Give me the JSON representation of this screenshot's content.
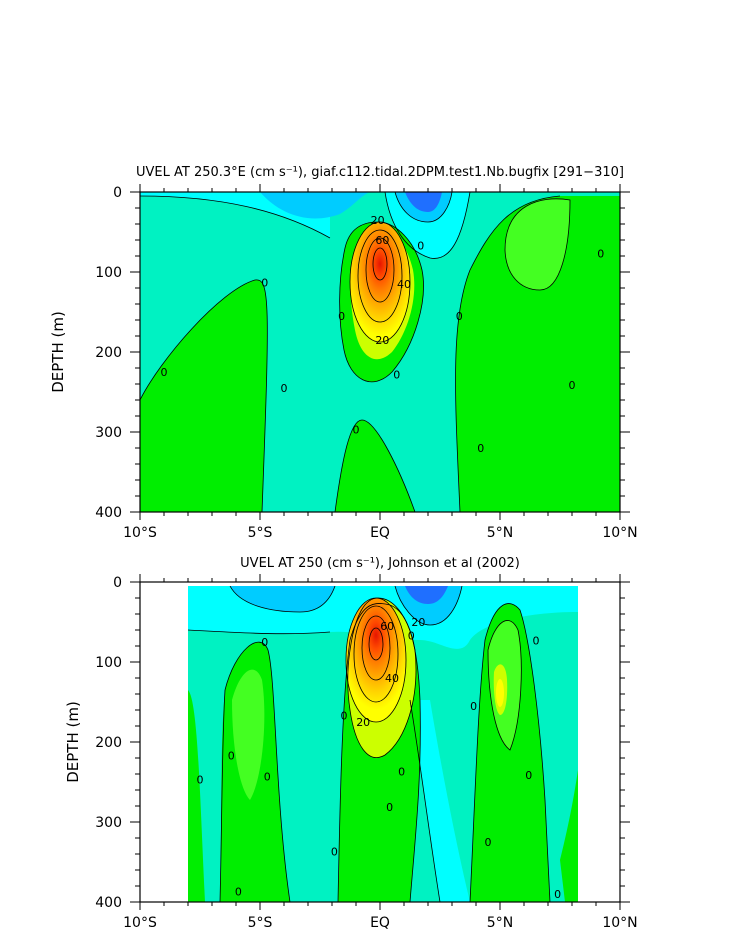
{
  "colors": {
    "cyan": "#00ffff",
    "aqua_green": "#00f2c2",
    "green": "#00ee00",
    "bright_green": "#44ff22",
    "light_blue": "#00ccff",
    "mid_blue": "#0099ff",
    "blue": "#1f6fff",
    "yellow_green": "#ccff00",
    "yellow": "#ffff00",
    "gold": "#ffd200",
    "orange": "#ffa800",
    "dark_orange": "#ff7a00",
    "red_orange": "#ff4a00",
    "red": "#e61500",
    "missing": "#ffffff"
  },
  "chart_data": [
    {
      "type": "heatmap",
      "title": "UVEL AT 250.3°E (cm s⁻¹), giaf.c112.tidal.2DPM.test1.Nb.bugfix [291−310]",
      "ylabel": "DEPTH (m)",
      "xlabel": "",
      "x_ticks": [
        "10°S",
        "5°S",
        "EQ",
        "5°N",
        "10°N"
      ],
      "y_ticks": [
        "0",
        "100",
        "200",
        "300",
        "400"
      ],
      "xlim": [
        -10,
        10
      ],
      "ylim": [
        0,
        400
      ],
      "y_inverted": true,
      "core": {
        "lat": 0,
        "depth": 85,
        "max_value": 100
      },
      "contour_labels": [
        {
          "text": "20",
          "lat": -0.1,
          "depth": 35
        },
        {
          "text": "60",
          "lat": 0.1,
          "depth": 60
        },
        {
          "text": "40",
          "lat": 1.0,
          "depth": 115
        },
        {
          "text": "20",
          "lat": 0.1,
          "depth": 185
        },
        {
          "text": "0",
          "lat": -9.0,
          "depth": 225
        },
        {
          "text": "0",
          "lat": -4.8,
          "depth": 113
        },
        {
          "text": "0",
          "lat": -4.0,
          "depth": 245
        },
        {
          "text": "0",
          "lat": -1.6,
          "depth": 155
        },
        {
          "text": "0",
          "lat": 1.7,
          "depth": 67
        },
        {
          "text": "0",
          "lat": 0.7,
          "depth": 228
        },
        {
          "text": "0",
          "lat": -1.0,
          "depth": 297
        },
        {
          "text": "0",
          "lat": 3.3,
          "depth": 155
        },
        {
          "text": "0",
          "lat": 4.2,
          "depth": 320
        },
        {
          "text": "0",
          "lat": 9.2,
          "depth": 77
        },
        {
          "text": "0",
          "lat": 8.0,
          "depth": 241
        }
      ]
    },
    {
      "type": "heatmap",
      "title": "UVEL AT 250 (cm s⁻¹), Johnson et al (2002)",
      "ylabel": "DEPTH (m)",
      "xlabel": "",
      "x_ticks": [
        "10°S",
        "5°S",
        "EQ",
        "5°N",
        "10°N"
      ],
      "y_ticks": [
        "0",
        "100",
        "200",
        "300",
        "400"
      ],
      "xlim": [
        -10,
        10
      ],
      "ylim": [
        0,
        400
      ],
      "y_inverted": true,
      "data_extent_lat": [
        -8,
        8.3
      ],
      "core": {
        "lat": -0.2,
        "depth": 72,
        "max_value": 100
      },
      "contour_labels": [
        {
          "text": "20",
          "lat": 1.6,
          "depth": 50
        },
        {
          "text": "60",
          "lat": 0.3,
          "depth": 55
        },
        {
          "text": "40",
          "lat": 0.5,
          "depth": 120
        },
        {
          "text": "20",
          "lat": -0.7,
          "depth": 175
        },
        {
          "text": "0",
          "lat": -4.8,
          "depth": 75
        },
        {
          "text": "0",
          "lat": -6.2,
          "depth": 217
        },
        {
          "text": "0",
          "lat": -7.5,
          "depth": 247
        },
        {
          "text": "0",
          "lat": -4.7,
          "depth": 243
        },
        {
          "text": "0",
          "lat": -5.9,
          "depth": 387
        },
        {
          "text": "0",
          "lat": -1.5,
          "depth": 167
        },
        {
          "text": "0",
          "lat": -1.9,
          "depth": 337
        },
        {
          "text": "0",
          "lat": 1.3,
          "depth": 67
        },
        {
          "text": "0",
          "lat": 0.9,
          "depth": 237
        },
        {
          "text": "0",
          "lat": 0.4,
          "depth": 281
        },
        {
          "text": "0",
          "lat": 3.9,
          "depth": 155
        },
        {
          "text": "0",
          "lat": 4.5,
          "depth": 325
        },
        {
          "text": "0",
          "lat": 6.5,
          "depth": 73
        },
        {
          "text": "0",
          "lat": 6.2,
          "depth": 241
        },
        {
          "text": "0",
          "lat": 7.4,
          "depth": 390
        }
      ]
    }
  ]
}
